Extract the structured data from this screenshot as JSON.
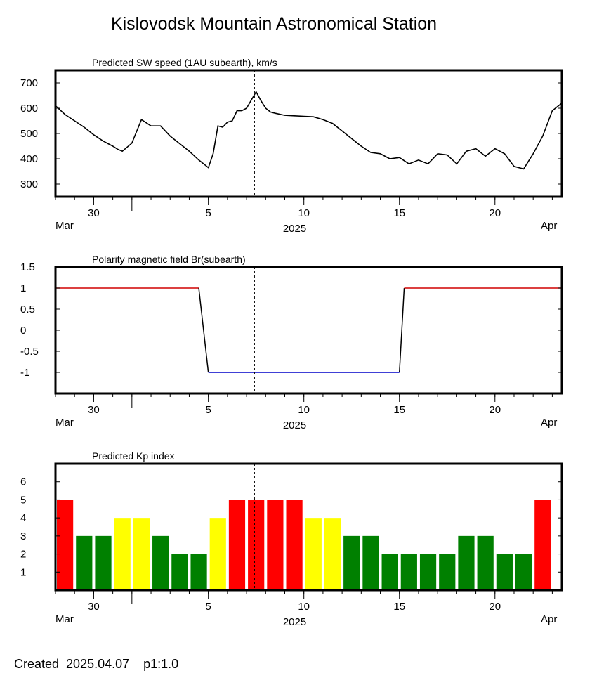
{
  "title": "Kislovodsk Mountain Astronomical Station",
  "footer": "Created  2025.04.07    p1:1.0",
  "x_axis": {
    "ticks": [
      {
        "date": "2025-03-30",
        "label": "30"
      },
      {
        "date": "2025-04-05",
        "label": "5"
      },
      {
        "date": "2025-04-10",
        "label": "10"
      },
      {
        "date": "2025-04-15",
        "label": "15"
      },
      {
        "date": "2025-04-20",
        "label": "20"
      }
    ],
    "month_left": "Mar",
    "month_right": "Apr",
    "year": "2025"
  },
  "colors": {
    "kp_red": "#ff0000",
    "kp_yellow": "#ffff00",
    "kp_green": "#008000",
    "polarity_positive": "#d00000",
    "polarity_negative": "#0000c8"
  },
  "chart_data": [
    {
      "type": "line",
      "title": "Predicted SW speed (1AU subearth), km/s",
      "xlim": [
        "2025-03-28T00:00",
        "2025-04-23T12:00"
      ],
      "ylim": [
        250,
        750
      ],
      "yticks": [
        300,
        400,
        500,
        600,
        700
      ],
      "now_marker": "2025-04-07T10:00",
      "series": [
        {
          "x": [
            "2025-03-28T00:00",
            "2025-03-28T12:00",
            "2025-03-29T00:00",
            "2025-03-29T12:00",
            "2025-03-30T00:00",
            "2025-03-30T12:00",
            "2025-03-31T00:00",
            "2025-03-31T06:00",
            "2025-03-31T12:00",
            "2025-04-01T00:00",
            "2025-04-01T12:00",
            "2025-04-02T00:00",
            "2025-04-02T12:00",
            "2025-04-03T00:00",
            "2025-04-03T12:00",
            "2025-04-04T00:00",
            "2025-04-04T12:00",
            "2025-04-05T00:00",
            "2025-04-05T06:00",
            "2025-04-05T12:00",
            "2025-04-05T18:00",
            "2025-04-06T00:00",
            "2025-04-06T06:00",
            "2025-04-06T12:00",
            "2025-04-06T18:00",
            "2025-04-07T00:00",
            "2025-04-07T12:00",
            "2025-04-07T18:00",
            "2025-04-08T00:00",
            "2025-04-08T06:00",
            "2025-04-08T12:00",
            "2025-04-09T00:00",
            "2025-04-09T12:00",
            "2025-04-10T00:00",
            "2025-04-10T12:00",
            "2025-04-11T00:00",
            "2025-04-11T12:00",
            "2025-04-12T00:00",
            "2025-04-12T12:00",
            "2025-04-13T00:00",
            "2025-04-13T12:00",
            "2025-04-14T00:00",
            "2025-04-14T12:00",
            "2025-04-15T00:00",
            "2025-04-15T12:00",
            "2025-04-16T00:00",
            "2025-04-16T12:00",
            "2025-04-17T00:00",
            "2025-04-17T12:00",
            "2025-04-18T00:00",
            "2025-04-18T12:00",
            "2025-04-19T00:00",
            "2025-04-19T12:00",
            "2025-04-20T00:00",
            "2025-04-20T12:00",
            "2025-04-21T00:00",
            "2025-04-21T12:00",
            "2025-04-22T00:00",
            "2025-04-22T12:00",
            "2025-04-23T00:00",
            "2025-04-23T12:00"
          ],
          "values": [
            610,
            575,
            550,
            525,
            495,
            470,
            450,
            438,
            430,
            462,
            555,
            530,
            530,
            490,
            460,
            430,
            395,
            365,
            420,
            530,
            525,
            545,
            550,
            590,
            590,
            600,
            665,
            630,
            600,
            585,
            580,
            572,
            570,
            568,
            566,
            555,
            540,
            510,
            480,
            450,
            425,
            420,
            400,
            405,
            380,
            395,
            380,
            420,
            415,
            380,
            430,
            440,
            410,
            440,
            420,
            370,
            360,
            420,
            490,
            590,
            620
          ]
        }
      ]
    },
    {
      "type": "line",
      "title": "Polarity magnetic field  Br(subearth)",
      "xlim": [
        "2025-03-28T00:00",
        "2025-04-23T12:00"
      ],
      "ylim": [
        -1.5,
        1.5
      ],
      "yticks": [
        1.5,
        1,
        0.5,
        0,
        -0.5,
        -1
      ],
      "ytick_labels": [
        "1.5",
        "1",
        "0.5",
        "0",
        "-0.5",
        "-1"
      ],
      "now_marker": "2025-04-07T10:00",
      "series": [
        {
          "x": [
            "2025-03-28T00:00",
            "2025-04-04T12:00",
            "2025-04-05T00:00",
            "2025-04-15T00:00",
            "2025-04-15T06:00",
            "2025-04-23T12:00"
          ],
          "values": [
            1,
            1,
            -1,
            -1,
            1,
            1
          ]
        }
      ]
    },
    {
      "type": "bar",
      "title": "Predicted Kp index",
      "xlim": [
        "2025-03-28T00:00",
        "2025-04-23T12:00"
      ],
      "ylim": [
        0,
        7
      ],
      "yticks": [
        1,
        2,
        3,
        4,
        5,
        6
      ],
      "now_marker": "2025-04-07T10:00",
      "categories": [
        "2025-03-28T12:00",
        "2025-03-29T12:00",
        "2025-03-30T12:00",
        "2025-03-31T12:00",
        "2025-04-01T12:00",
        "2025-04-02T12:00",
        "2025-04-03T12:00",
        "2025-04-04T12:00",
        "2025-04-05T12:00",
        "2025-04-06T12:00",
        "2025-04-07T12:00",
        "2025-04-08T12:00",
        "2025-04-09T12:00",
        "2025-04-10T12:00",
        "2025-04-11T12:00",
        "2025-04-12T12:00",
        "2025-04-13T12:00",
        "2025-04-14T12:00",
        "2025-04-15T12:00",
        "2025-04-16T12:00",
        "2025-04-17T12:00",
        "2025-04-18T12:00",
        "2025-04-19T12:00",
        "2025-04-20T12:00",
        "2025-04-21T12:00",
        "2025-04-22T12:00"
      ],
      "values": [
        5,
        3,
        3,
        4,
        4,
        3,
        2,
        2,
        4,
        5,
        5,
        5,
        5,
        4,
        4,
        3,
        3,
        2,
        2,
        2,
        2,
        3,
        3,
        2,
        2,
        5
      ]
    }
  ]
}
